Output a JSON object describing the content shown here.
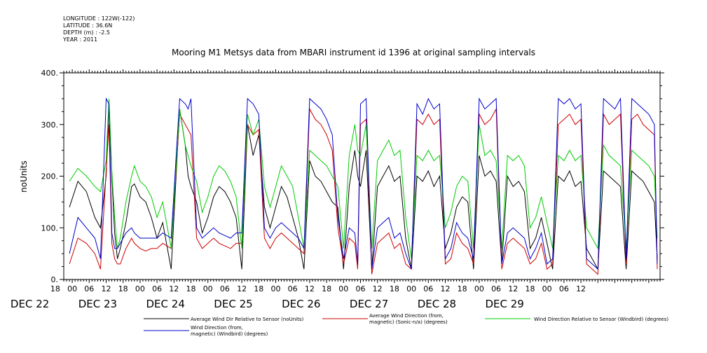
{
  "header": {
    "meta": [
      "LONGITUDE : 122W(-122)",
      "LATITUDE : 36.6N",
      "DEPTH (m) : -2.5",
      "YEAR : 2011"
    ],
    "title": "Mooring M1 Metsys data from MBARI instrument id 1396 at original sampling intervals"
  },
  "chart_data": {
    "type": "line",
    "title": "Mooring M1 Metsys data from MBARI instrument id 1396 at original sampling intervals",
    "xlabel": "",
    "ylabel": "noUnits",
    "ylim": [
      0,
      400
    ],
    "xlim_hours_from_dec22_00": [
      -3,
      208
    ],
    "y_ticks": [
      "0.",
      "100.",
      "200.",
      "300.",
      "400."
    ],
    "x_tick_labels": [
      "18",
      "00",
      "06",
      "12",
      "18",
      "00",
      "06",
      "12",
      "18",
      "00",
      "06",
      "12",
      "18",
      "00",
      "06",
      "12",
      "18",
      "00",
      "06",
      "12",
      "18",
      "00",
      "06",
      "12",
      "18",
      "00",
      "06",
      "12",
      "18",
      "00",
      "06",
      "12"
    ],
    "date_labels": [
      "DEC 22",
      "DEC 23",
      "DEC 24",
      "DEC 25",
      "DEC 26",
      "DEC 27",
      "DEC 28",
      "DEC 29"
    ],
    "grid": false,
    "legend_position": "bottom",
    "series": [
      {
        "name": "Average Wind Dir Relative to Sensor (noUnits)",
        "color": "#000000",
        "x": [
          -1,
          2,
          5,
          8,
          10,
          12,
          13,
          14,
          15,
          16,
          17,
          19,
          21,
          22,
          24,
          26,
          28,
          30,
          32,
          35,
          38,
          40,
          41,
          42,
          44,
          46,
          48,
          50,
          52,
          54,
          56,
          58,
          60,
          62,
          64,
          66,
          68,
          70,
          71,
          72,
          74,
          76,
          78,
          80,
          82,
          84,
          86,
          88,
          90,
          92,
          94,
          96,
          98,
          100,
          101,
          102,
          104,
          106,
          108,
          110,
          112,
          114,
          116,
          118,
          120,
          122,
          124,
          126,
          128,
          130,
          132,
          134,
          136,
          138,
          140,
          142,
          144,
          146,
          148,
          150,
          152,
          154,
          156,
          158,
          160,
          162,
          164,
          166,
          168,
          170,
          172,
          174,
          176,
          178,
          180,
          182,
          184,
          186,
          188,
          190,
          192,
          194,
          196,
          198,
          200,
          202,
          204,
          206,
          207
        ],
        "values": [
          140,
          190,
          170,
          120,
          100,
          200,
          340,
          200,
          90,
          40,
          60,
          110,
          180,
          185,
          160,
          150,
          120,
          80,
          110,
          20,
          330,
          260,
          200,
          180,
          150,
          90,
          120,
          160,
          180,
          170,
          150,
          120,
          20,
          300,
          240,
          280,
          140,
          100,
          120,
          140,
          180,
          160,
          120,
          80,
          20,
          230,
          200,
          190,
          170,
          150,
          140,
          20,
          180,
          250,
          200,
          180,
          250,
          20,
          180,
          200,
          220,
          190,
          200,
          80,
          20,
          200,
          190,
          210,
          180,
          200,
          60,
          90,
          140,
          160,
          150,
          20,
          240,
          200,
          210,
          190,
          30,
          200,
          180,
          190,
          170,
          60,
          80,
          120,
          70,
          20,
          200,
          190,
          210,
          180,
          190,
          60,
          40,
          20,
          210,
          200,
          190,
          180,
          20,
          210,
          200,
          190,
          170,
          150,
          40
        ]
      },
      {
        "name": "Average Wind Direction (from, magnetic) (Sonic-n/a) (degrees)",
        "color": "#cc0000",
        "x": [
          -1,
          2,
          5,
          8,
          10,
          12,
          13,
          14,
          15,
          16,
          17,
          19,
          21,
          22,
          24,
          26,
          28,
          30,
          32,
          35,
          38,
          40,
          41,
          42,
          44,
          46,
          48,
          50,
          52,
          54,
          56,
          58,
          60,
          62,
          64,
          66,
          68,
          70,
          71,
          72,
          74,
          76,
          78,
          80,
          82,
          84,
          86,
          88,
          90,
          92,
          94,
          96,
          98,
          100,
          101,
          102,
          104,
          106,
          108,
          110,
          112,
          114,
          116,
          118,
          120,
          122,
          124,
          126,
          128,
          130,
          132,
          134,
          136,
          138,
          140,
          142,
          144,
          146,
          148,
          150,
          152,
          154,
          156,
          158,
          160,
          162,
          164,
          166,
          168,
          170,
          172,
          174,
          176,
          178,
          180,
          182,
          184,
          186,
          188,
          190,
          192,
          194,
          196,
          198,
          200,
          202,
          204,
          206,
          207
        ],
        "values": [
          30,
          80,
          70,
          50,
          20,
          210,
          300,
          70,
          40,
          30,
          30,
          60,
          80,
          70,
          60,
          55,
          60,
          60,
          70,
          60,
          320,
          300,
          290,
          280,
          80,
          60,
          70,
          80,
          70,
          65,
          60,
          70,
          70,
          300,
          280,
          290,
          80,
          60,
          70,
          80,
          90,
          80,
          70,
          60,
          50,
          330,
          310,
          300,
          280,
          250,
          100,
          30,
          80,
          70,
          20,
          300,
          310,
          10,
          70,
          80,
          90,
          60,
          70,
          30,
          20,
          310,
          300,
          320,
          300,
          310,
          30,
          40,
          90,
          70,
          60,
          30,
          320,
          300,
          310,
          330,
          20,
          70,
          80,
          70,
          60,
          30,
          40,
          70,
          20,
          30,
          300,
          310,
          320,
          300,
          310,
          30,
          20,
          10,
          320,
          300,
          310,
          320,
          30,
          310,
          320,
          300,
          290,
          280,
          20
        ]
      },
      {
        "name": "Wind Direction Relative to Sensor (Windbird) (degrees)",
        "color": "#00cc00",
        "x": [
          -1,
          2,
          5,
          8,
          10,
          12,
          13,
          14,
          15,
          16,
          17,
          19,
          21,
          22,
          24,
          26,
          28,
          30,
          32,
          35,
          38,
          40,
          41,
          42,
          44,
          46,
          48,
          50,
          52,
          54,
          56,
          58,
          60,
          62,
          64,
          66,
          68,
          70,
          71,
          72,
          74,
          76,
          78,
          80,
          82,
          84,
          86,
          88,
          90,
          92,
          94,
          96,
          98,
          100,
          101,
          102,
          104,
          106,
          108,
          110,
          112,
          114,
          116,
          118,
          120,
          122,
          124,
          126,
          128,
          130,
          132,
          134,
          136,
          138,
          140,
          142,
          144,
          146,
          148,
          150,
          152,
          154,
          156,
          158,
          160,
          162,
          164,
          166,
          168,
          170,
          172,
          174,
          176,
          178,
          180,
          182,
          184,
          186,
          188,
          190,
          192,
          194,
          196,
          198,
          200,
          202,
          204,
          206,
          207
        ],
        "values": [
          190,
          215,
          200,
          180,
          170,
          230,
          350,
          210,
          120,
          60,
          80,
          150,
          200,
          220,
          190,
          180,
          160,
          120,
          150,
          60,
          330,
          260,
          240,
          220,
          190,
          130,
          160,
          200,
          220,
          210,
          190,
          160,
          60,
          320,
          280,
          310,
          180,
          140,
          160,
          180,
          220,
          200,
          180,
          120,
          60,
          250,
          240,
          230,
          220,
          200,
          180,
          60,
          240,
          300,
          250,
          240,
          300,
          60,
          230,
          250,
          270,
          240,
          250,
          120,
          40,
          240,
          230,
          250,
          230,
          240,
          100,
          130,
          180,
          200,
          190,
          60,
          300,
          240,
          250,
          230,
          60,
          240,
          230,
          240,
          220,
          100,
          120,
          160,
          110,
          60,
          240,
          230,
          250,
          230,
          240,
          100,
          80,
          60,
          260,
          240,
          230,
          220,
          60,
          250,
          240,
          230,
          220,
          200,
          80
        ]
      },
      {
        "name": "Wind Direction (from, magnetic) (Windbird) (degrees)",
        "color": "#0000cc",
        "x": [
          -1,
          2,
          5,
          8,
          10,
          12,
          13,
          14,
          15,
          16,
          17,
          19,
          21,
          22,
          24,
          26,
          28,
          30,
          32,
          35,
          38,
          40,
          41,
          42,
          44,
          46,
          48,
          50,
          52,
          54,
          56,
          58,
          60,
          62,
          64,
          66,
          68,
          70,
          71,
          72,
          74,
          76,
          78,
          80,
          82,
          84,
          86,
          88,
          90,
          92,
          94,
          96,
          98,
          100,
          101,
          102,
          104,
          106,
          108,
          110,
          112,
          114,
          116,
          118,
          120,
          122,
          124,
          126,
          128,
          130,
          132,
          134,
          136,
          138,
          140,
          142,
          144,
          146,
          148,
          150,
          152,
          154,
          156,
          158,
          160,
          162,
          164,
          166,
          168,
          170,
          172,
          174,
          176,
          178,
          180,
          182,
          184,
          186,
          188,
          190,
          192,
          194,
          196,
          198,
          200,
          202,
          204,
          206,
          207
        ],
        "values": [
          50,
          120,
          100,
          80,
          40,
          350,
          340,
          90,
          60,
          60,
          70,
          90,
          100,
          90,
          80,
          80,
          80,
          80,
          90,
          80,
          350,
          340,
          330,
          350,
          100,
          80,
          90,
          100,
          90,
          85,
          80,
          90,
          90,
          350,
          340,
          320,
          100,
          80,
          90,
          100,
          110,
          100,
          90,
          80,
          60,
          350,
          340,
          330,
          310,
          280,
          120,
          40,
          100,
          90,
          30,
          340,
          350,
          20,
          100,
          110,
          120,
          80,
          90,
          50,
          20,
          340,
          320,
          350,
          330,
          340,
          40,
          60,
          110,
          90,
          80,
          40,
          350,
          330,
          340,
          350,
          30,
          90,
          100,
          90,
          80,
          40,
          60,
          90,
          30,
          40,
          350,
          340,
          350,
          330,
          340,
          40,
          30,
          20,
          350,
          340,
          330,
          350,
          40,
          350,
          340,
          330,
          320,
          300,
          30
        ]
      }
    ]
  }
}
